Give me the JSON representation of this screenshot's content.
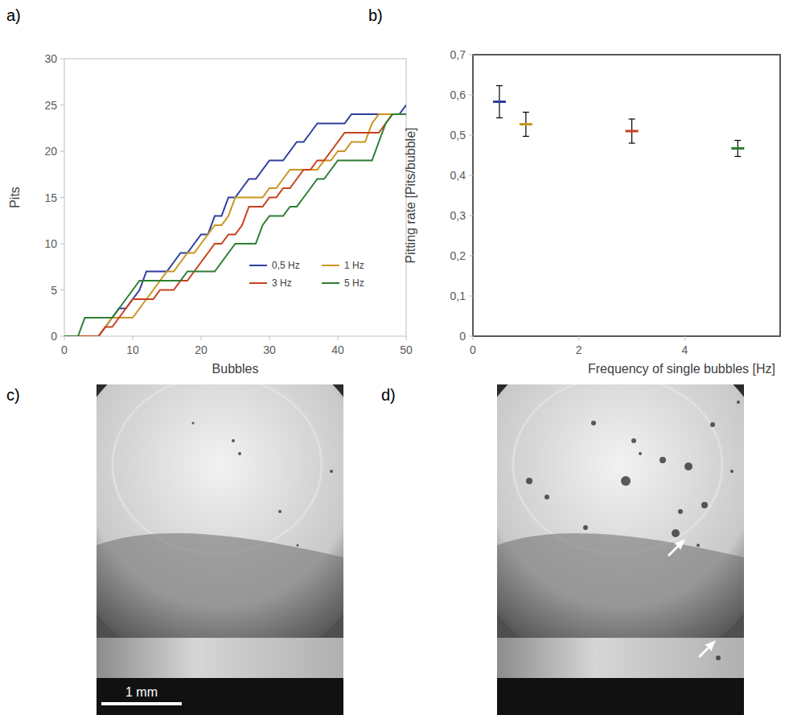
{
  "chart_data": [
    {
      "type": "line",
      "panel": "a)",
      "x_label": "Bubbles",
      "y_label": "Pits",
      "x": [
        0,
        1,
        2,
        3,
        4,
        5,
        6,
        7,
        8,
        9,
        10,
        11,
        12,
        13,
        14,
        15,
        16,
        17,
        18,
        19,
        20,
        21,
        22,
        23,
        24,
        25,
        26,
        27,
        28,
        29,
        30,
        31,
        32,
        33,
        34,
        35,
        36,
        37,
        38,
        39,
        40,
        41,
        42,
        43,
        44,
        45,
        46,
        47,
        48,
        49,
        50
      ],
      "series": [
        {
          "name": "0,5 Hz",
          "color": "#2f3f9e",
          "values": [
            0,
            0,
            0,
            0,
            0,
            0,
            1,
            2,
            3,
            3,
            4,
            5,
            7,
            7,
            7,
            7,
            8,
            9,
            9,
            10,
            11,
            11,
            13,
            13,
            15,
            15,
            16,
            17,
            17,
            18,
            19,
            19,
            19,
            20,
            21,
            21,
            22,
            23,
            23,
            23,
            23,
            23,
            24,
            24,
            24,
            24,
            24,
            24,
            24,
            24,
            25
          ]
        },
        {
          "name": "1 Hz",
          "color": "#c9951f",
          "values": [
            0,
            0,
            0,
            0,
            0,
            0,
            1,
            2,
            2,
            2,
            2,
            3,
            4,
            5,
            6,
            7,
            7,
            8,
            9,
            9,
            10,
            11,
            12,
            12,
            13,
            15,
            15,
            15,
            15,
            15,
            16,
            16,
            17,
            18,
            18,
            18,
            18,
            18,
            19,
            19,
            20,
            20,
            21,
            21,
            21,
            23,
            24,
            24,
            24,
            24,
            24
          ]
        },
        {
          "name": "3 Hz",
          "color": "#c8401c",
          "values": [
            0,
            0,
            0,
            0,
            0,
            0,
            1,
            1,
            2,
            3,
            4,
            4,
            4,
            4,
            5,
            5,
            5,
            6,
            6,
            7,
            8,
            9,
            10,
            10,
            11,
            11,
            12,
            14,
            14,
            14,
            15,
            15,
            16,
            16,
            17,
            18,
            18,
            19,
            19,
            20,
            21,
            22,
            22,
            22,
            22,
            22,
            22,
            23,
            24,
            24,
            24
          ]
        },
        {
          "name": "5 Hz",
          "color": "#2e7d32",
          "values": [
            0,
            0,
            0,
            2,
            2,
            2,
            2,
            2,
            3,
            4,
            5,
            6,
            6,
            6,
            6,
            6,
            6,
            6,
            7,
            7,
            7,
            7,
            7,
            8,
            9,
            10,
            10,
            10,
            10,
            12,
            13,
            13,
            13,
            14,
            14,
            15,
            16,
            17,
            17,
            18,
            19,
            19,
            19,
            19,
            19,
            19,
            21,
            23,
            24,
            24,
            24
          ]
        }
      ],
      "xlim": [
        0,
        50
      ],
      "xticks": [
        0,
        10,
        20,
        30,
        40,
        50
      ],
      "ylim": [
        0,
        30
      ],
      "yticks": [
        0,
        5,
        10,
        15,
        20,
        25,
        30
      ],
      "legend": "lower right",
      "grid": false
    },
    {
      "type": "scatter",
      "panel": "b)",
      "marker": "dash",
      "x_label": "Frequency of single bubbles [Hz]",
      "y_label": "Pitting rate [Pits/bubble]",
      "x": [
        0.5,
        1,
        3,
        5
      ],
      "values": [
        0.583,
        0.527,
        0.51,
        0.467
      ],
      "errors": [
        0.04,
        0.03,
        0.03,
        0.02
      ],
      "colors": [
        "#2f3f9e",
        "#c9951f",
        "#c8401c",
        "#2e7d32"
      ],
      "xlim": [
        0,
        5.8
      ],
      "xticks": [
        0,
        2,
        4
      ],
      "ylim": [
        0,
        0.7
      ],
      "yticks": [
        0,
        {
          "value": 0.1,
          "label": "0,1"
        },
        {
          "value": 0.2,
          "label": "0,2"
        },
        {
          "value": 0.3,
          "label": "0,3"
        },
        {
          "value": 0.4,
          "label": "0,4"
        },
        {
          "value": 0.5,
          "label": "0,5"
        },
        {
          "value": 0.6,
          "label": "0,6"
        },
        {
          "value": 0.7,
          "label": "0,7"
        }
      ],
      "grid": false
    }
  ],
  "images": [
    {
      "panel": "c)",
      "scale_bar": "1 mm"
    },
    {
      "panel": "d)"
    }
  ]
}
